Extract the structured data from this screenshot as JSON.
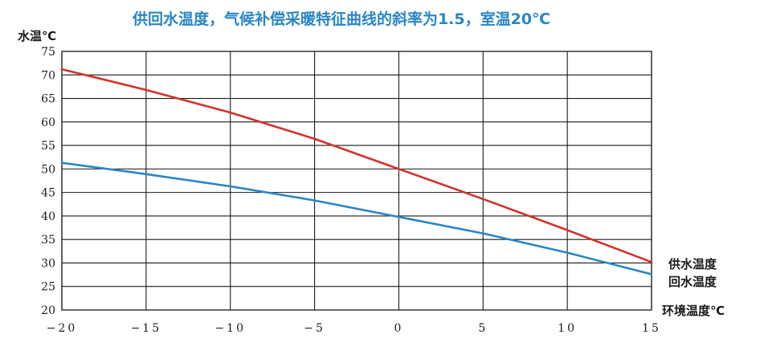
{
  "chart_data": {
    "type": "line",
    "title": "供回水温度，气候补偿采暖特征曲线的斜率为1.5，室温20℃",
    "xlabel": "环境温度℃",
    "ylabel": "水温℃",
    "xlim": [
      -20,
      15
    ],
    "ylim": [
      20,
      75
    ],
    "xticks": [
      -20,
      -15,
      -10,
      -5,
      0,
      5,
      10,
      15
    ],
    "xtick_labels": [
      "−20",
      "−15",
      "−10",
      "−5",
      "0",
      "5",
      "10",
      "15"
    ],
    "yticks": [
      20,
      25,
      30,
      35,
      40,
      45,
      50,
      55,
      60,
      65,
      70,
      75
    ],
    "ytick_labels": [
      "20",
      "25",
      "30",
      "35",
      "40",
      "45",
      "50",
      "55",
      "60",
      "65",
      "70",
      "75"
    ],
    "grid": true,
    "legend_position": "right, at line ends",
    "series": [
      {
        "name": "供水温度",
        "color": "#d2332c",
        "points": [
          [
            -20,
            71.2
          ],
          [
            -15,
            66.8
          ],
          [
            -10,
            62.0
          ],
          [
            -5,
            56.4
          ],
          [
            0,
            50.0
          ],
          [
            5,
            43.6
          ],
          [
            10,
            37.0
          ],
          [
            15,
            30.2
          ]
        ]
      },
      {
        "name": "回水温度",
        "color": "#2a86c4",
        "points": [
          [
            -20,
            51.3
          ],
          [
            -15,
            48.9
          ],
          [
            -10,
            46.3
          ],
          [
            -5,
            43.3
          ],
          [
            0,
            39.8
          ],
          [
            5,
            36.3
          ],
          [
            10,
            32.2
          ],
          [
            15,
            27.6
          ]
        ]
      }
    ],
    "title_color": "#2a86c4"
  }
}
